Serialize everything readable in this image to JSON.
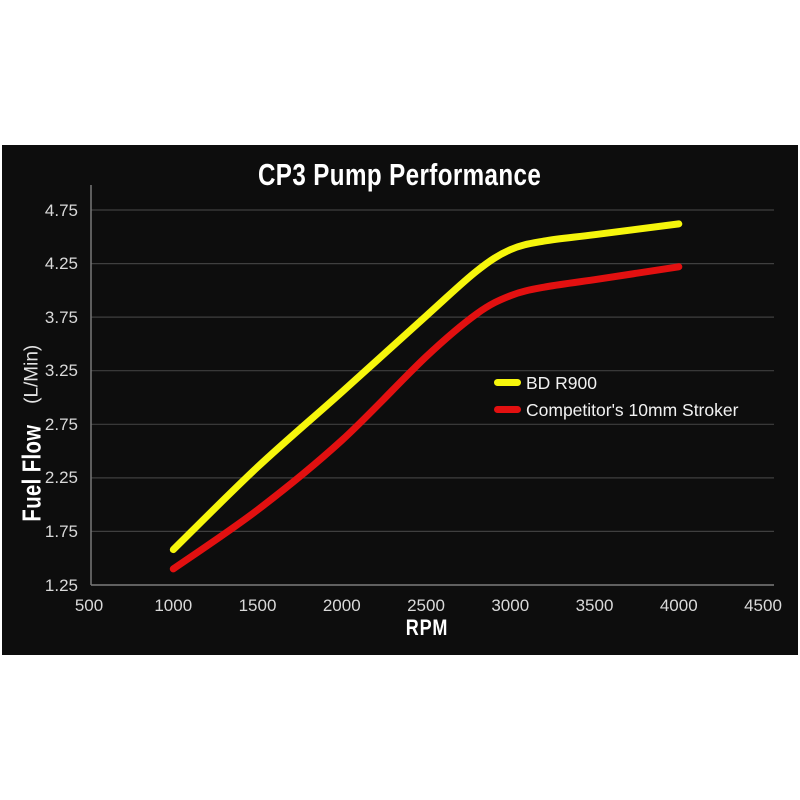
{
  "page": {
    "background": "#ffffff",
    "panel_background": "#0d0d0d"
  },
  "chart_data": {
    "type": "line",
    "title": "CP3 Pump Performance",
    "xlabel": "RPM",
    "ylabel": "Fuel Flow (L/Min)",
    "ylabel_parts": {
      "bold": "Fuel Flow",
      "unit": "(L/Min)"
    },
    "x_ticks": [
      500,
      1000,
      1500,
      2000,
      2500,
      3000,
      3500,
      4000,
      4500
    ],
    "y_ticks": [
      1.25,
      1.75,
      2.25,
      2.75,
      3.25,
      3.75,
      4.25,
      4.75
    ],
    "xlim": [
      500,
      4500
    ],
    "ylim": [
      1.25,
      5.0
    ],
    "grid": "horizontal-only",
    "legend_position": "center-right",
    "colors": {
      "grid": "#3f3f3f",
      "axis": "#787878",
      "tick_text": "#d9d9d9",
      "title_text": "#ffffff"
    },
    "series": [
      {
        "name": "BD R900",
        "color": "#f6f60c",
        "x": [
          1000,
          1500,
          2000,
          2500,
          2800,
          3000,
          3200,
          3500,
          4000
        ],
        "values": [
          1.58,
          2.35,
          3.05,
          3.76,
          4.18,
          4.38,
          4.46,
          4.52,
          4.62
        ]
      },
      {
        "name": "Competitor's 10mm Stroker",
        "color": "#e21010",
        "x": [
          1000,
          1500,
          2000,
          2500,
          2800,
          3000,
          3200,
          3500,
          4000
        ],
        "values": [
          1.4,
          1.95,
          2.6,
          3.38,
          3.78,
          3.95,
          4.03,
          4.1,
          4.22
        ]
      }
    ]
  }
}
